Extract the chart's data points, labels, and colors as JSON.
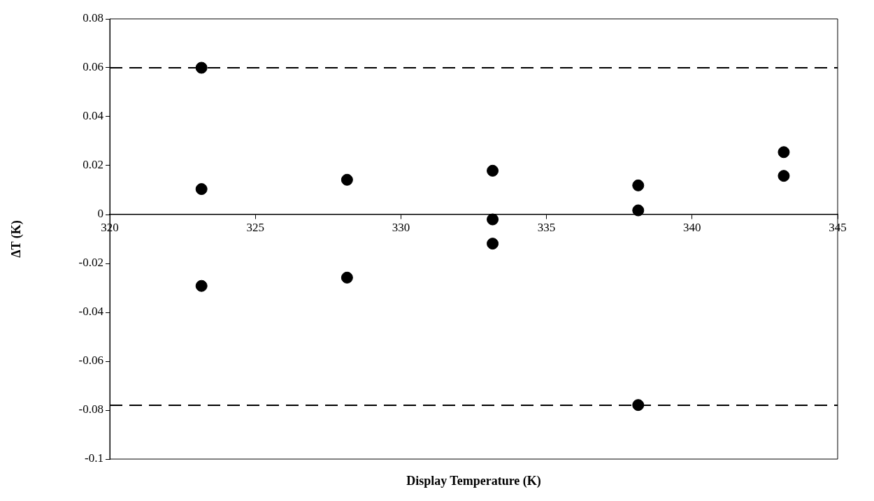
{
  "chart_data": {
    "type": "scatter",
    "xlabel": "Display Temperature (K)",
    "ylabel": "ΔT (K)",
    "series": [
      {
        "color": "#000000",
        "x": [
          323.15,
          323.15,
          323.15,
          328.15,
          328.15,
          333.15,
          333.15,
          333.15,
          338.15,
          338.15,
          338.15,
          343.15,
          343.15
        ],
        "values": [
          0.06,
          0.0104,
          -0.0292,
          0.0142,
          -0.0258,
          0.0179,
          -0.002,
          -0.0119,
          0.0119,
          0.0017,
          -0.0779,
          0.0255,
          0.0158
        ]
      }
    ],
    "xlim": [
      320,
      345
    ],
    "xticks": [
      320,
      325,
      330,
      335,
      340,
      345
    ],
    "ylim": [
      -0.1,
      0.08
    ],
    "yticks": [
      -0.1,
      -0.08,
      -0.06,
      -0.04,
      -0.02,
      0,
      0.02,
      0.04,
      0.06,
      0.08
    ],
    "ref_lines": [
      {
        "axis": "y",
        "value": 0.06,
        "line_style": "dashed"
      },
      {
        "axis": "y",
        "value": -0.078,
        "line_style": "dashed"
      }
    ],
    "grid": false,
    "legend": false,
    "marker": "circle"
  }
}
